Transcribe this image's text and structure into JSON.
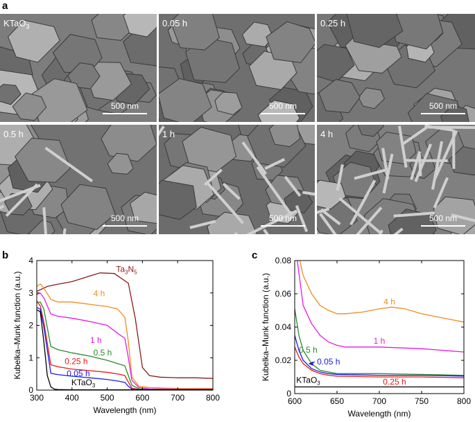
{
  "figure": {
    "panel_a": "a",
    "panel_b": "b",
    "panel_c": "c"
  },
  "sem_images": [
    {
      "label": "KTaO",
      "label_sub": "3",
      "scale_bar": "500 nm",
      "tone": "#7d7d7d"
    },
    {
      "label": "0.05 h",
      "scale_bar": "500 nm",
      "tone": "#6f6f6f"
    },
    {
      "label": "0.25 h",
      "scale_bar": "500 nm",
      "tone": "#767676"
    },
    {
      "label": "0.5 h",
      "scale_bar": "500 nm",
      "tone": "#727272"
    },
    {
      "label": "1 h",
      "scale_bar": "500 nm",
      "tone": "#6c6c6c"
    },
    {
      "label": "4 h",
      "scale_bar": "500 nm",
      "tone": "#808080"
    }
  ],
  "chart_data": [
    {
      "type": "line",
      "xlabel": "Wavelength (nm)",
      "ylabel": "Kubelka–Munk function (a.u.)",
      "xlim": [
        300,
        800
      ],
      "ylim": [
        0,
        4
      ],
      "xticks": [
        300,
        400,
        500,
        600,
        700,
        800
      ],
      "yticks": [
        0,
        1,
        2,
        3,
        4
      ],
      "series": [
        {
          "name": "Ta3N5",
          "color": "#8b1a1a",
          "x": [
            300,
            310,
            330,
            350,
            400,
            450,
            480,
            520,
            560,
            580,
            600,
            620,
            650,
            700,
            750,
            800
          ],
          "y": [
            3.05,
            3.1,
            3.2,
            3.25,
            3.35,
            3.52,
            3.62,
            3.6,
            3.3,
            2.2,
            0.7,
            0.45,
            0.4,
            0.38,
            0.38,
            0.36
          ]
        },
        {
          "name": "4 h",
          "color": "#f08c1c",
          "x": [
            300,
            310,
            320,
            340,
            360,
            400,
            450,
            500,
            530,
            550,
            560,
            570,
            590,
            620,
            700,
            800
          ],
          "y": [
            3.2,
            3.28,
            3.15,
            2.8,
            2.72,
            2.72,
            2.65,
            2.58,
            2.5,
            2.25,
            1.5,
            0.4,
            0.12,
            0.08,
            0.05,
            0.05
          ]
        },
        {
          "name": "1 h",
          "color": "#e619e6",
          "x": [
            300,
            310,
            320,
            340,
            360,
            400,
            450,
            500,
            530,
            550,
            560,
            570,
            590,
            620,
            700,
            800
          ],
          "y": [
            2.95,
            3.0,
            2.85,
            2.35,
            2.28,
            2.22,
            2.12,
            2.0,
            1.75,
            1.6,
            1.0,
            0.3,
            0.08,
            0.04,
            0.03,
            0.03
          ]
        },
        {
          "name": "0.5 h",
          "color": "#2a8a2a",
          "x": [
            300,
            310,
            320,
            340,
            360,
            400,
            450,
            500,
            530,
            550,
            560,
            570,
            590,
            620,
            700,
            800
          ],
          "y": [
            2.7,
            2.72,
            2.5,
            1.35,
            1.25,
            1.15,
            1.05,
            0.92,
            0.82,
            0.75,
            0.45,
            0.15,
            0.04,
            0.02,
            0.01,
            0.01
          ]
        },
        {
          "name": "0.25 h",
          "color": "#e61919",
          "x": [
            300,
            310,
            320,
            340,
            360,
            400,
            450,
            500,
            530,
            550,
            560,
            570,
            590,
            620,
            700,
            800
          ],
          "y": [
            2.75,
            2.6,
            2.1,
            0.78,
            0.72,
            0.65,
            0.6,
            0.55,
            0.5,
            0.45,
            0.25,
            0.06,
            0.02,
            0.01,
            0.01,
            0.01
          ]
        },
        {
          "name": "0.05 h",
          "color": "#1a1ae6",
          "x": [
            300,
            310,
            320,
            340,
            360,
            400,
            450,
            500,
            530,
            550,
            560,
            570,
            590,
            620,
            700,
            800
          ],
          "y": [
            2.55,
            2.5,
            1.95,
            0.52,
            0.48,
            0.43,
            0.38,
            0.33,
            0.28,
            0.24,
            0.12,
            0.03,
            0.01,
            0.01,
            0.01,
            0.01
          ]
        },
        {
          "name": "KTaO3",
          "color": "#000000",
          "x": [
            300,
            310,
            320,
            330,
            340,
            350,
            360,
            400,
            500,
            600,
            700,
            800
          ],
          "y": [
            2.48,
            2.42,
            1.5,
            0.45,
            0.1,
            0.03,
            0.02,
            0.01,
            0.01,
            0.01,
            0.01,
            0.01
          ]
        }
      ],
      "annotations": [
        {
          "text": "Ta",
          "sub": "3",
          "text2": "N",
          "sub2": "5",
          "x": 555,
          "y": 3.65,
          "color": "#8b1a1a"
        },
        {
          "text": "4 h",
          "x": 477,
          "y": 2.9,
          "color": "#f08c1c"
        },
        {
          "text": "1 h",
          "x": 468,
          "y": 1.45,
          "color": "#e619e6"
        },
        {
          "text": "0.5 h",
          "x": 487,
          "y": 1.07,
          "color": "#2a8a2a"
        },
        {
          "text": "0.25 h",
          "x": 412,
          "y": 0.8,
          "color": "#e61919"
        },
        {
          "text": "0.05 h",
          "x": 418,
          "y": 0.43,
          "color": "#1a1ae6"
        },
        {
          "text": "KTaO",
          "sub": "3",
          "x": 432,
          "y": 0.15,
          "color": "#000000"
        }
      ]
    },
    {
      "type": "line",
      "xlabel": "Wavelength (nm)",
      "ylabel": "Kubelka–Munk function (a.u.)",
      "xlim": [
        600,
        800
      ],
      "ylim": [
        0,
        0.08
      ],
      "xticks": [
        600,
        650,
        700,
        750,
        800
      ],
      "yticks": [
        0,
        0.02,
        0.04,
        0.06,
        0.08
      ],
      "ytick_labels": [
        "0",
        "0.02",
        "0.04",
        "0.06",
        "0.08"
      ],
      "series": [
        {
          "name": "4 h",
          "color": "#f08c1c",
          "x": [
            606,
            610,
            620,
            630,
            640,
            650,
            660,
            680,
            700,
            715,
            730,
            750,
            770,
            800
          ],
          "y": [
            0.08,
            0.071,
            0.06,
            0.053,
            0.05,
            0.048,
            0.048,
            0.049,
            0.051,
            0.052,
            0.051,
            0.048,
            0.046,
            0.043
          ]
        },
        {
          "name": "1 h",
          "color": "#e619e6",
          "x": [
            603,
            610,
            620,
            630,
            640,
            650,
            660,
            680,
            700,
            750,
            800
          ],
          "y": [
            0.08,
            0.053,
            0.042,
            0.035,
            0.031,
            0.029,
            0.028,
            0.028,
            0.028,
            0.027,
            0.025
          ]
        },
        {
          "name": "0.5 h",
          "color": "#2a8a2a",
          "x": [
            600,
            605,
            610,
            620,
            630,
            640,
            650,
            700,
            750,
            800
          ],
          "y": [
            0.051,
            0.035,
            0.026,
            0.018,
            0.014,
            0.013,
            0.012,
            0.012,
            0.0115,
            0.011
          ]
        },
        {
          "name": "0.05 h",
          "color": "#1a1ae6",
          "x": [
            600,
            605,
            610,
            620,
            630,
            640,
            650,
            700,
            750,
            800
          ],
          "y": [
            0.035,
            0.026,
            0.02,
            0.015,
            0.013,
            0.012,
            0.0115,
            0.011,
            0.011,
            0.0105
          ]
        },
        {
          "name": "0.25 h",
          "color": "#e61919",
          "x": [
            600,
            605,
            610,
            620,
            630,
            640,
            650,
            700,
            750,
            800
          ],
          "y": [
            0.028,
            0.022,
            0.018,
            0.014,
            0.012,
            0.011,
            0.0105,
            0.01,
            0.01,
            0.0095
          ]
        },
        {
          "name": "KTaO3",
          "color": "#000000",
          "x": [
            600,
            650,
            700,
            750,
            800
          ],
          "y": [
            0.004,
            0.004,
            0.004,
            0.004,
            0.004
          ]
        }
      ],
      "annotations": [
        {
          "text": "4 h",
          "x": 712,
          "y": 0.0535,
          "color": "#f08c1c"
        },
        {
          "text": "1 h",
          "x": 700,
          "y": 0.03,
          "color": "#e619e6"
        },
        {
          "text": "0.5 h",
          "x": 616,
          "y": 0.0245,
          "color": "#2a8a2a"
        },
        {
          "text": "0.05 h",
          "x": 640,
          "y": 0.0175,
          "color": "#1a1ae6",
          "arrow_to_x": 616,
          "arrow_to_y": 0.018
        },
        {
          "text": "0.25 h",
          "x": 718,
          "y": 0.0055,
          "color": "#e61919"
        },
        {
          "text": "KTaO",
          "sub": "3",
          "x": 616,
          "y": 0.0065,
          "color": "#000000"
        }
      ]
    }
  ]
}
